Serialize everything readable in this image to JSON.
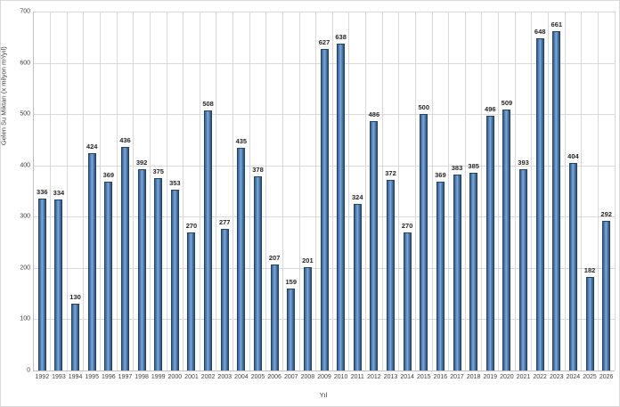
{
  "chart_data": {
    "type": "bar",
    "title": "",
    "xlabel": "Yıl",
    "ylabel": "Gelen Su Miktarı (x milyon m³/yıl)",
    "ylim": [
      0,
      700
    ],
    "ytick_step": 100,
    "grid": "both",
    "legend": "none",
    "categories": [
      "1992",
      "1993",
      "1994",
      "1995",
      "1996",
      "1997",
      "1998",
      "1999",
      "2000",
      "2001",
      "2002",
      "2003",
      "2004",
      "2005",
      "2006",
      "2007",
      "2008",
      "2009",
      "2010",
      "2011",
      "2012",
      "2013",
      "2014",
      "2015",
      "2016",
      "2017",
      "2018",
      "2019",
      "2020",
      "2021",
      "2022",
      "2023",
      "2024",
      "2025",
      "2026"
    ],
    "values": [
      336,
      334,
      130,
      424,
      369,
      436,
      392,
      375,
      353,
      270,
      508,
      277,
      435,
      378,
      207,
      159,
      201,
      627,
      638,
      324,
      486,
      372,
      270,
      500,
      369,
      383,
      385,
      496,
      509,
      393,
      648,
      661,
      404,
      182,
      292
    ],
    "colors": {
      "bar_fill": "#4f81bd",
      "bar_edge": "#24435f",
      "gridline": "#d9d9d9",
      "axis_line": "#bfbfbf",
      "value_label": "#262626",
      "tick_label": "#404040"
    }
  }
}
